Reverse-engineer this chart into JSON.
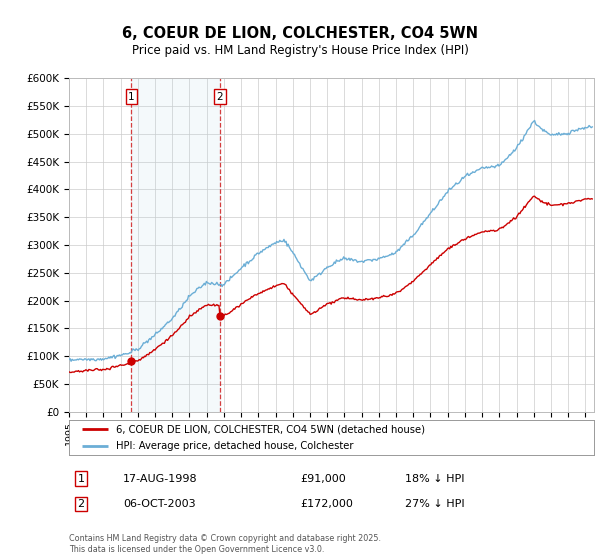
{
  "title": "6, COEUR DE LION, COLCHESTER, CO4 5WN",
  "subtitle": "Price paid vs. HM Land Registry's House Price Index (HPI)",
  "ylim": [
    0,
    600000
  ],
  "yticks": [
    0,
    50000,
    100000,
    150000,
    200000,
    250000,
    300000,
    350000,
    400000,
    450000,
    500000,
    550000,
    600000
  ],
  "ytick_labels": [
    "£0",
    "£50K",
    "£100K",
    "£150K",
    "£200K",
    "£250K",
    "£300K",
    "£350K",
    "£400K",
    "£450K",
    "£500K",
    "£550K",
    "£600K"
  ],
  "xlim_start": 1995.0,
  "xlim_end": 2025.5,
  "hpi_color": "#6baed6",
  "price_color": "#cc0000",
  "purchase1_x": 1998.63,
  "purchase1_y": 91000,
  "purchase1_label": "1",
  "purchase2_x": 2003.76,
  "purchase2_y": 172000,
  "purchase2_label": "2",
  "legend_line1": "6, COEUR DE LION, COLCHESTER, CO4 5WN (detached house)",
  "legend_line2": "HPI: Average price, detached house, Colchester",
  "table_row1_num": "1",
  "table_row1_date": "17-AUG-1998",
  "table_row1_price": "£91,000",
  "table_row1_hpi": "18% ↓ HPI",
  "table_row2_num": "2",
  "table_row2_date": "06-OCT-2003",
  "table_row2_price": "£172,000",
  "table_row2_hpi": "27% ↓ HPI",
  "footer": "Contains HM Land Registry data © Crown copyright and database right 2025.\nThis data is licensed under the Open Government Licence v3.0.",
  "background_color": "#ffffff",
  "grid_color": "#cccccc"
}
